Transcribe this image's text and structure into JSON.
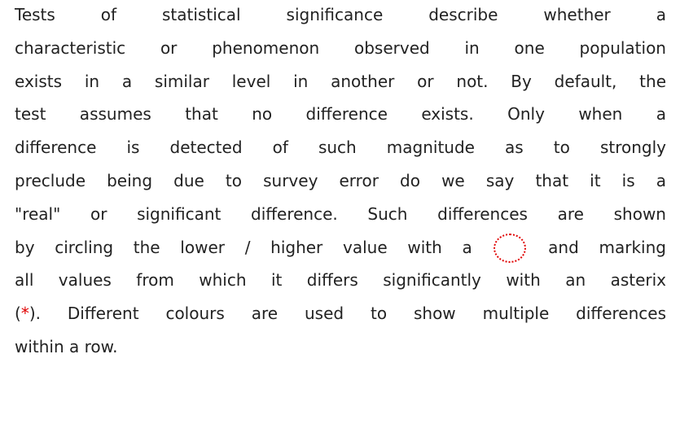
{
  "paragraph": {
    "lines": [
      [
        "Tests of statistical significance describe whether a"
      ],
      [
        "characteristic or phenomenon observed in one population"
      ],
      [
        "exists in a similar level in another or not.  By default, the"
      ],
      [
        "test assumes that no difference exists.  Only when a"
      ],
      [
        "difference is detected of such magnitude as to strongly"
      ],
      [
        "preclude being due to survey error do we say that it is a"
      ],
      [
        "\"real\" or significant difference.  Such differences are shown"
      ],
      [
        "by circling the lower / higher value with a",
        "and marking"
      ],
      [
        "all values from which it differs significantly with an asterix"
      ],
      [
        "(",
        "*",
        ").  Different colours are used to show multiple differences"
      ],
      [
        "within a row."
      ]
    ]
  }
}
